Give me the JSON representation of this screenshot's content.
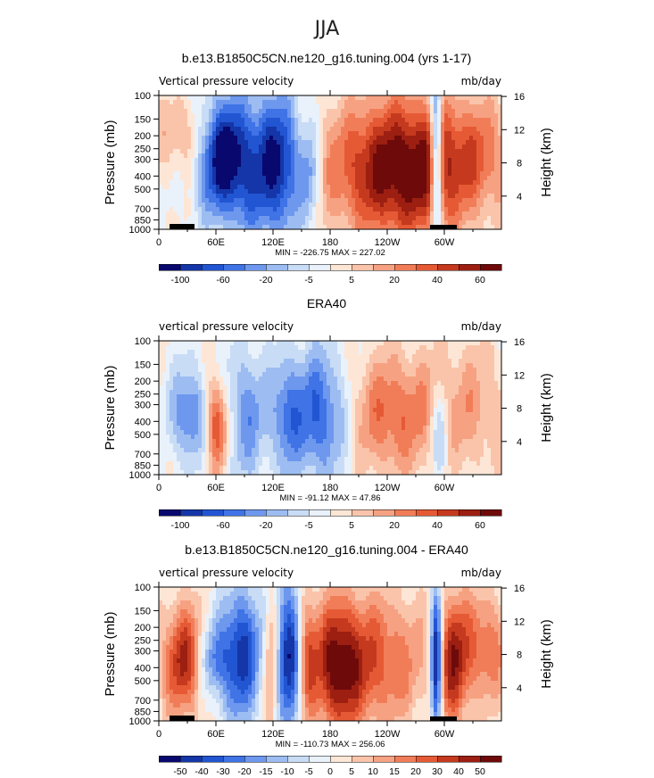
{
  "figure": {
    "suptitle": "JJA"
  },
  "chart_data": [
    {
      "type": "heatmap",
      "title": "b.e13.B1850C5CN.ne120_g16.tuning.004 (yrs 1-17)",
      "left_label": "Vertical pressure velocity",
      "right_label": "mb/day",
      "ylabel": "Pressure (mb)",
      "y2label": "Height (km)",
      "x_ticks": [
        "0",
        "60E",
        "120E",
        "180",
        "120W",
        "60W"
      ],
      "y_ticks": [
        "100",
        "150",
        "200",
        "250",
        "300",
        "400",
        "500",
        "700",
        "850",
        "1000"
      ],
      "y_values": [
        100,
        150,
        200,
        250,
        300,
        400,
        500,
        700,
        850,
        1000
      ],
      "y2_ticks": [
        "16",
        "12",
        "8",
        "4"
      ],
      "stats": "MIN = -226.75   MAX = 227.02",
      "colorbar_labels": [
        "-100",
        "-60",
        "-20",
        "-5",
        "5",
        "20",
        "40",
        "60"
      ],
      "colorbar_colors": [
        "#08086e",
        "#1436a8",
        "#2255d2",
        "#3f73e6",
        "#6e98ee",
        "#9dbdf2",
        "#c8dcf6",
        "#e9f1fb",
        "#fde6d6",
        "#fac4aa",
        "#f6a282",
        "#f17d58",
        "#e55a35",
        "#c53a1e",
        "#9c1f12",
        "#6e0a0a"
      ]
    },
    {
      "type": "heatmap",
      "title": "ERA40",
      "left_label": "vertical pressure velocity",
      "right_label": "mb/day",
      "ylabel": "Pressure (mb)",
      "y2label": "Height (km)",
      "x_ticks": [
        "0",
        "60E",
        "120E",
        "180",
        "120W",
        "60W"
      ],
      "y_ticks": [
        "100",
        "150",
        "200",
        "250",
        "300",
        "400",
        "500",
        "700",
        "850",
        "1000"
      ],
      "y_values": [
        100,
        150,
        200,
        250,
        300,
        400,
        500,
        700,
        850,
        1000
      ],
      "y2_ticks": [
        "16",
        "12",
        "8",
        "4"
      ],
      "stats": "MIN = -91.12   MAX =  47.86",
      "colorbar_labels": [
        "-100",
        "-60",
        "-20",
        "-5",
        "5",
        "20",
        "40",
        "60"
      ],
      "colorbar_colors": [
        "#08086e",
        "#1436a8",
        "#2255d2",
        "#3f73e6",
        "#6e98ee",
        "#9dbdf2",
        "#c8dcf6",
        "#e9f1fb",
        "#fde6d6",
        "#fac4aa",
        "#f6a282",
        "#f17d58",
        "#e55a35",
        "#c53a1e",
        "#9c1f12",
        "#6e0a0a"
      ]
    },
    {
      "type": "heatmap",
      "title": "b.e13.B1850C5CN.ne120_g16.tuning.004 - ERA40",
      "left_label": "vertical pressure velocity",
      "right_label": "mb/day",
      "ylabel": "Pressure (mb)",
      "y2label": "Height (km)",
      "x_ticks": [
        "0",
        "60E",
        "120E",
        "180",
        "120W",
        "60W"
      ],
      "y_ticks": [
        "100",
        "150",
        "200",
        "250",
        "300",
        "400",
        "500",
        "700",
        "850",
        "1000"
      ],
      "y_values": [
        100,
        150,
        200,
        250,
        300,
        400,
        500,
        700,
        850,
        1000
      ],
      "y2_ticks": [
        "16",
        "12",
        "8",
        "4"
      ],
      "stats": "MIN = -110.73   MAX = 256.06",
      "colorbar_labels": [
        "-50",
        "-40",
        "-30",
        "-20",
        "-15",
        "-10",
        "-5",
        "0",
        "5",
        "10",
        "15",
        "20",
        "30",
        "40",
        "50"
      ],
      "colorbar_colors": [
        "#08086e",
        "#1436a8",
        "#2255d2",
        "#3f73e6",
        "#6e98ee",
        "#9dbdf2",
        "#c8dcf6",
        "#e9f1fb",
        "#fde6d6",
        "#fac4aa",
        "#f6a282",
        "#f17d58",
        "#e55a35",
        "#c53a1e",
        "#9c1f12",
        "#6e0a0a"
      ]
    }
  ]
}
